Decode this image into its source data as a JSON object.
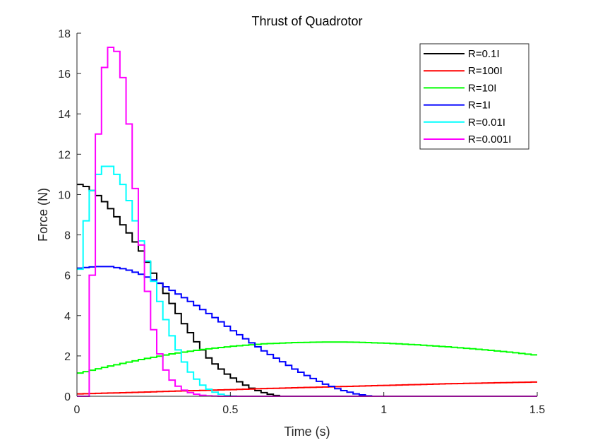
{
  "chart_data": {
    "type": "line",
    "title": "Thrust of Quadrotor",
    "xlabel": "Time (s)",
    "ylabel": "Force (N)",
    "xlim": [
      0,
      1.5
    ],
    "ylim": [
      0,
      18
    ],
    "xticks": [
      0,
      0.5,
      1,
      1.5
    ],
    "xtick_labels": [
      "0",
      "0.5",
      "1",
      "1.5"
    ],
    "yticks": [
      0,
      2,
      4,
      6,
      8,
      10,
      12,
      14,
      16,
      18
    ],
    "ytick_labels": [
      "0",
      "2",
      "4",
      "6",
      "8",
      "10",
      "12",
      "14",
      "16",
      "18"
    ],
    "grid": false,
    "legend_position": "top-right",
    "sample_step": 0.02,
    "series": [
      {
        "name": "R=0.1I",
        "color": "#000000",
        "x": [
          0,
          0.02,
          0.04,
          0.06,
          0.08,
          0.1,
          0.12,
          0.14,
          0.16,
          0.18,
          0.2,
          0.22,
          0.24,
          0.26,
          0.28,
          0.3,
          0.32,
          0.34,
          0.36,
          0.38,
          0.4,
          0.42,
          0.44,
          0.46,
          0.48,
          0.5,
          0.52,
          0.54,
          0.56,
          0.58,
          0.6,
          0.62,
          0.64,
          0.66,
          1.5
        ],
        "y": [
          10.5,
          10.4,
          10.2,
          9.95,
          9.65,
          9.3,
          8.9,
          8.5,
          8.1,
          7.65,
          7.2,
          6.65,
          6.1,
          5.6,
          5.1,
          4.6,
          4.1,
          3.6,
          3.15,
          2.7,
          2.3,
          1.9,
          1.6,
          1.35,
          1.1,
          0.9,
          0.72,
          0.55,
          0.4,
          0.28,
          0.18,
          0.1,
          0.04,
          0,
          0
        ]
      },
      {
        "name": "R=100I",
        "color": "#ff0000",
        "x": [
          0,
          0.1,
          0.2,
          0.3,
          0.4,
          0.5,
          0.6,
          0.7,
          0.8,
          0.9,
          1.0,
          1.1,
          1.2,
          1.3,
          1.4,
          1.5
        ],
        "y": [
          0.12,
          0.16,
          0.2,
          0.25,
          0.29,
          0.33,
          0.38,
          0.42,
          0.46,
          0.5,
          0.54,
          0.58,
          0.62,
          0.65,
          0.68,
          0.71
        ]
      },
      {
        "name": "R=10I",
        "color": "#00ff00",
        "x": [
          0,
          0.1,
          0.2,
          0.3,
          0.4,
          0.5,
          0.6,
          0.7,
          0.8,
          0.85,
          0.9,
          1.0,
          1.1,
          1.2,
          1.3,
          1.4,
          1.5
        ],
        "y": [
          1.15,
          1.5,
          1.82,
          2.1,
          2.32,
          2.48,
          2.6,
          2.66,
          2.69,
          2.69,
          2.68,
          2.63,
          2.55,
          2.45,
          2.33,
          2.19,
          2.02
        ]
      },
      {
        "name": "R=1I",
        "color": "#0000ff",
        "x": [
          0,
          0.05,
          0.1,
          0.15,
          0.2,
          0.25,
          0.3,
          0.35,
          0.4,
          0.45,
          0.5,
          0.55,
          0.6,
          0.65,
          0.7,
          0.75,
          0.8,
          0.85,
          0.9,
          0.94,
          0.96,
          1.5
        ],
        "y": [
          6.35,
          6.43,
          6.43,
          6.3,
          6.05,
          5.7,
          5.25,
          4.8,
          4.3,
          3.8,
          3.25,
          2.75,
          2.25,
          1.8,
          1.35,
          0.95,
          0.6,
          0.32,
          0.12,
          0.02,
          0,
          0
        ]
      },
      {
        "name": "R=0.01I",
        "color": "#00ffff",
        "x": [
          0,
          0.02,
          0.04,
          0.06,
          0.08,
          0.1,
          0.12,
          0.14,
          0.16,
          0.18,
          0.2,
          0.22,
          0.24,
          0.26,
          0.28,
          0.3,
          0.32,
          0.34,
          0.36,
          0.38,
          0.4,
          0.42,
          0.44,
          0.46,
          0.48,
          0.5,
          0.52,
          1.5
        ],
        "y": [
          6.3,
          8.7,
          10.2,
          11.0,
          11.4,
          11.4,
          11.0,
          10.5,
          9.7,
          8.7,
          7.7,
          6.7,
          5.7,
          4.7,
          3.8,
          3.0,
          2.3,
          1.7,
          1.2,
          0.85,
          0.55,
          0.35,
          0.2,
          0.1,
          0.04,
          0.01,
          0,
          0
        ]
      },
      {
        "name": "R=0.001I",
        "color": "#ff00ff",
        "x": [
          0,
          0.02,
          0.04,
          0.06,
          0.08,
          0.1,
          0.12,
          0.14,
          0.16,
          0.18,
          0.2,
          0.22,
          0.24,
          0.26,
          0.28,
          0.3,
          0.32,
          0.34,
          0.36,
          0.38,
          0.4,
          0.42,
          0.44,
          0.46,
          0.48,
          1.5
        ],
        "y": [
          0,
          0,
          6.0,
          13.0,
          16.3,
          17.3,
          17.1,
          15.8,
          13.5,
          10.3,
          7.5,
          5.2,
          3.3,
          2.1,
          1.3,
          0.8,
          0.5,
          0.3,
          0.18,
          0.1,
          0.05,
          0.02,
          0.01,
          0,
          0,
          0
        ]
      }
    ]
  }
}
